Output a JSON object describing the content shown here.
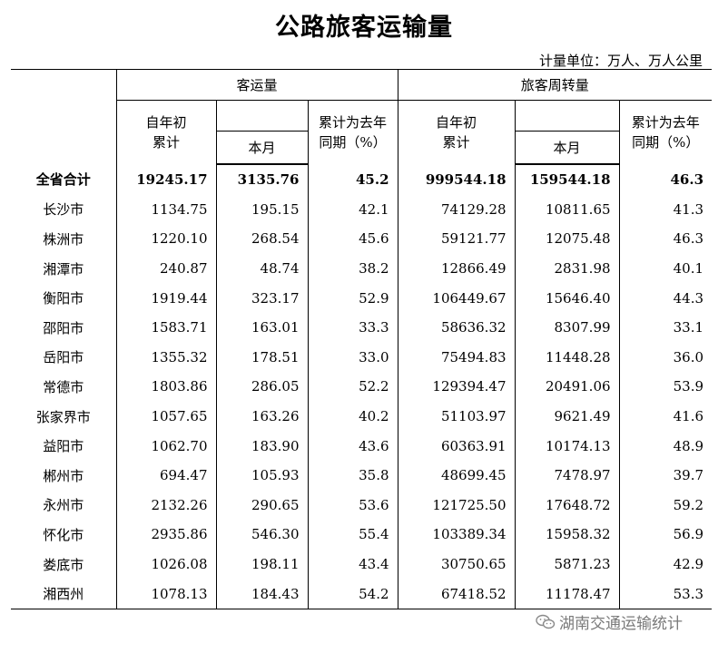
{
  "title": "公路旅客运输量",
  "unit_text": "计量单位：万人、万人公里",
  "headers": {
    "group_passenger": "客运量",
    "group_turnover": "旅客周转量",
    "ytd_line1": "自年初",
    "ytd_line2": "累计",
    "month": "本月",
    "yoy_line1": "累计为去年",
    "yoy_line2": "同期（%）"
  },
  "rows": [
    {
      "name": "全省合计",
      "p_ytd": "19245.17",
      "p_month": "3135.76",
      "p_yoy": "45.2",
      "t_ytd": "999544.18",
      "t_month": "159544.18",
      "t_yoy": "46.3"
    },
    {
      "name": "长沙市",
      "p_ytd": "1134.75",
      "p_month": "195.15",
      "p_yoy": "42.1",
      "t_ytd": "74129.28",
      "t_month": "10811.65",
      "t_yoy": "41.3"
    },
    {
      "name": "株洲市",
      "p_ytd": "1220.10",
      "p_month": "268.54",
      "p_yoy": "45.6",
      "t_ytd": "59121.77",
      "t_month": "12075.48",
      "t_yoy": "46.3"
    },
    {
      "name": "湘潭市",
      "p_ytd": "240.87",
      "p_month": "48.74",
      "p_yoy": "38.2",
      "t_ytd": "12866.49",
      "t_month": "2831.98",
      "t_yoy": "40.1"
    },
    {
      "name": "衡阳市",
      "p_ytd": "1919.44",
      "p_month": "323.17",
      "p_yoy": "52.9",
      "t_ytd": "106449.67",
      "t_month": "15646.40",
      "t_yoy": "44.3"
    },
    {
      "name": "邵阳市",
      "p_ytd": "1583.71",
      "p_month": "163.01",
      "p_yoy": "33.3",
      "t_ytd": "58636.32",
      "t_month": "8307.99",
      "t_yoy": "33.1"
    },
    {
      "name": "岳阳市",
      "p_ytd": "1355.32",
      "p_month": "178.51",
      "p_yoy": "33.0",
      "t_ytd": "75494.83",
      "t_month": "11448.28",
      "t_yoy": "36.0"
    },
    {
      "name": "常德市",
      "p_ytd": "1803.86",
      "p_month": "286.05",
      "p_yoy": "52.2",
      "t_ytd": "129394.47",
      "t_month": "20491.06",
      "t_yoy": "53.9"
    },
    {
      "name": "张家界市",
      "p_ytd": "1057.65",
      "p_month": "163.26",
      "p_yoy": "40.2",
      "t_ytd": "51103.97",
      "t_month": "9621.49",
      "t_yoy": "41.6"
    },
    {
      "name": "益阳市",
      "p_ytd": "1062.70",
      "p_month": "183.90",
      "p_yoy": "43.6",
      "t_ytd": "60363.91",
      "t_month": "10174.13",
      "t_yoy": "48.9"
    },
    {
      "name": "郴州市",
      "p_ytd": "694.47",
      "p_month": "105.93",
      "p_yoy": "35.8",
      "t_ytd": "48699.45",
      "t_month": "7478.97",
      "t_yoy": "39.7"
    },
    {
      "name": "永州市",
      "p_ytd": "2132.26",
      "p_month": "290.65",
      "p_yoy": "53.6",
      "t_ytd": "121725.50",
      "t_month": "17648.72",
      "t_yoy": "59.2"
    },
    {
      "name": "怀化市",
      "p_ytd": "2935.86",
      "p_month": "546.30",
      "p_yoy": "55.4",
      "t_ytd": "103389.34",
      "t_month": "15958.32",
      "t_yoy": "56.9"
    },
    {
      "name": "娄底市",
      "p_ytd": "1026.08",
      "p_month": "198.11",
      "p_yoy": "43.4",
      "t_ytd": "30750.65",
      "t_month": "5871.23",
      "t_yoy": "42.9"
    },
    {
      "name": "湘西州",
      "p_ytd": "1078.13",
      "p_month": "184.43",
      "p_yoy": "54.2",
      "t_ytd": "67418.52",
      "t_month": "11178.47",
      "t_yoy": "53.3"
    }
  ],
  "watermark": {
    "text": "湖南交通运输统计",
    "icon": "wechat-icon",
    "color": "#7a7a7a"
  }
}
